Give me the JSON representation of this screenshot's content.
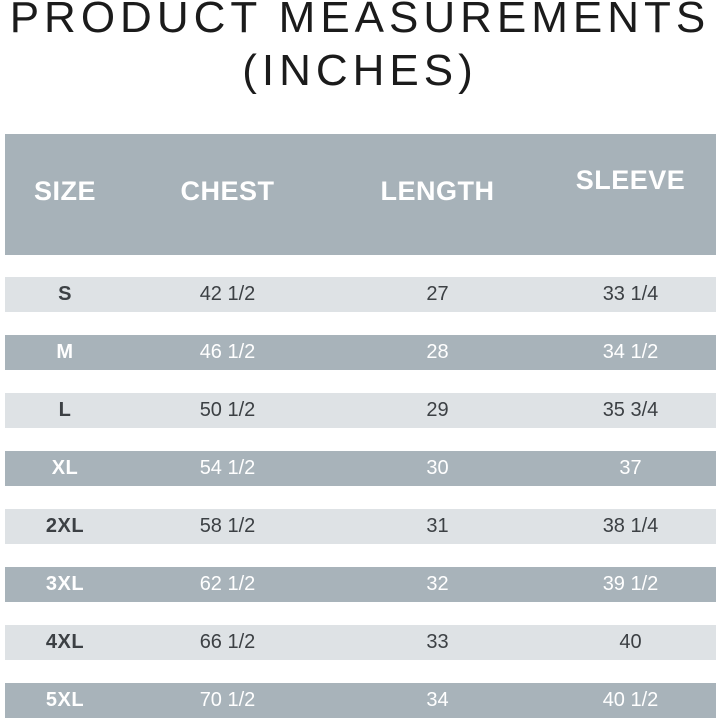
{
  "title": {
    "line1": "PRODUCT MEASUREMENTS",
    "line2": "(INCHES)"
  },
  "chart_data": {
    "type": "table",
    "title": "PRODUCT MEASUREMENTS (INCHES)",
    "columns": [
      "SIZE",
      "CHEST",
      "LENGTH",
      "SLEEVE"
    ],
    "rows": [
      [
        "S",
        "42 1/2",
        "27",
        "33 1/4"
      ],
      [
        "M",
        "46 1/2",
        "28",
        "34 1/2"
      ],
      [
        "L",
        "50 1/2",
        "29",
        "35 3/4"
      ],
      [
        "XL",
        "54 1/2",
        "30",
        "37"
      ],
      [
        "2XL",
        "58 1/2",
        "31",
        "38 1/4"
      ],
      [
        "3XL",
        "62 1/2",
        "32",
        "39 1/2"
      ],
      [
        "4XL",
        "66 1/2",
        "33",
        "40"
      ],
      [
        "5XL",
        "70 1/2",
        "34",
        "40 1/2"
      ]
    ],
    "units": "inches",
    "layout_hints": {
      "row_striping": [
        "light",
        "dark"
      ],
      "header_position": "top"
    }
  },
  "colors": {
    "header_bg": "#a7b2b9",
    "dark_row_bg": "#a8b3ba",
    "light_row_bg": "#dee2e5",
    "dark_text": "#3c4044",
    "light_text": "#ffffff",
    "title_text": "#1b1b1b",
    "page_bg": "#ffffff"
  }
}
